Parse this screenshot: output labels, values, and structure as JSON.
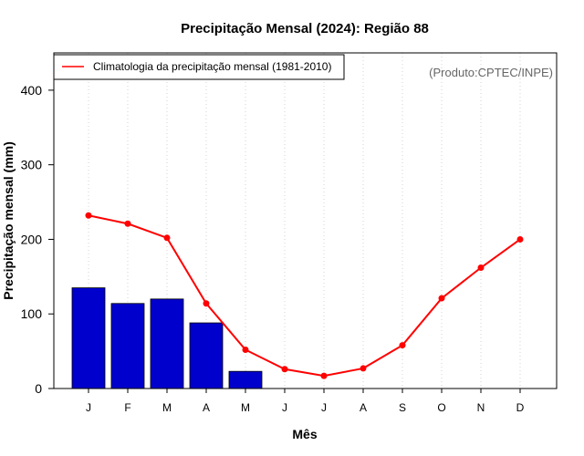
{
  "chart_data": {
    "type": "bar",
    "title": "Precipitação Mensal (2024): Região 88",
    "xlabel": "Mês",
    "ylabel": "Precipitação mensal (mm)",
    "ylim": [
      0,
      450
    ],
    "yticks": [
      0,
      100,
      200,
      300,
      400
    ],
    "categories": [
      "J",
      "F",
      "M",
      "A",
      "M",
      "J",
      "J",
      "A",
      "S",
      "O",
      "N",
      "D"
    ],
    "series": [
      {
        "name": "2024",
        "kind": "bar",
        "color": "#0000cc",
        "values": [
          135,
          114,
          120,
          88,
          23,
          null,
          null,
          null,
          null,
          null,
          null,
          null
        ]
      },
      {
        "name": "Climatologia da precipitação mensal (1981-2010)",
        "kind": "line",
        "color": "#ff0000",
        "values": [
          232,
          221,
          202,
          114,
          52,
          26,
          17,
          27,
          58,
          121,
          162,
          200
        ]
      }
    ],
    "legend": {
      "position": "top-left",
      "entries": [
        "Climatologia da precipitação mensal (1981-2010)"
      ]
    },
    "annotation": "(Produto:CPTEC/INPE)",
    "grid": "vertical-dotted"
  }
}
